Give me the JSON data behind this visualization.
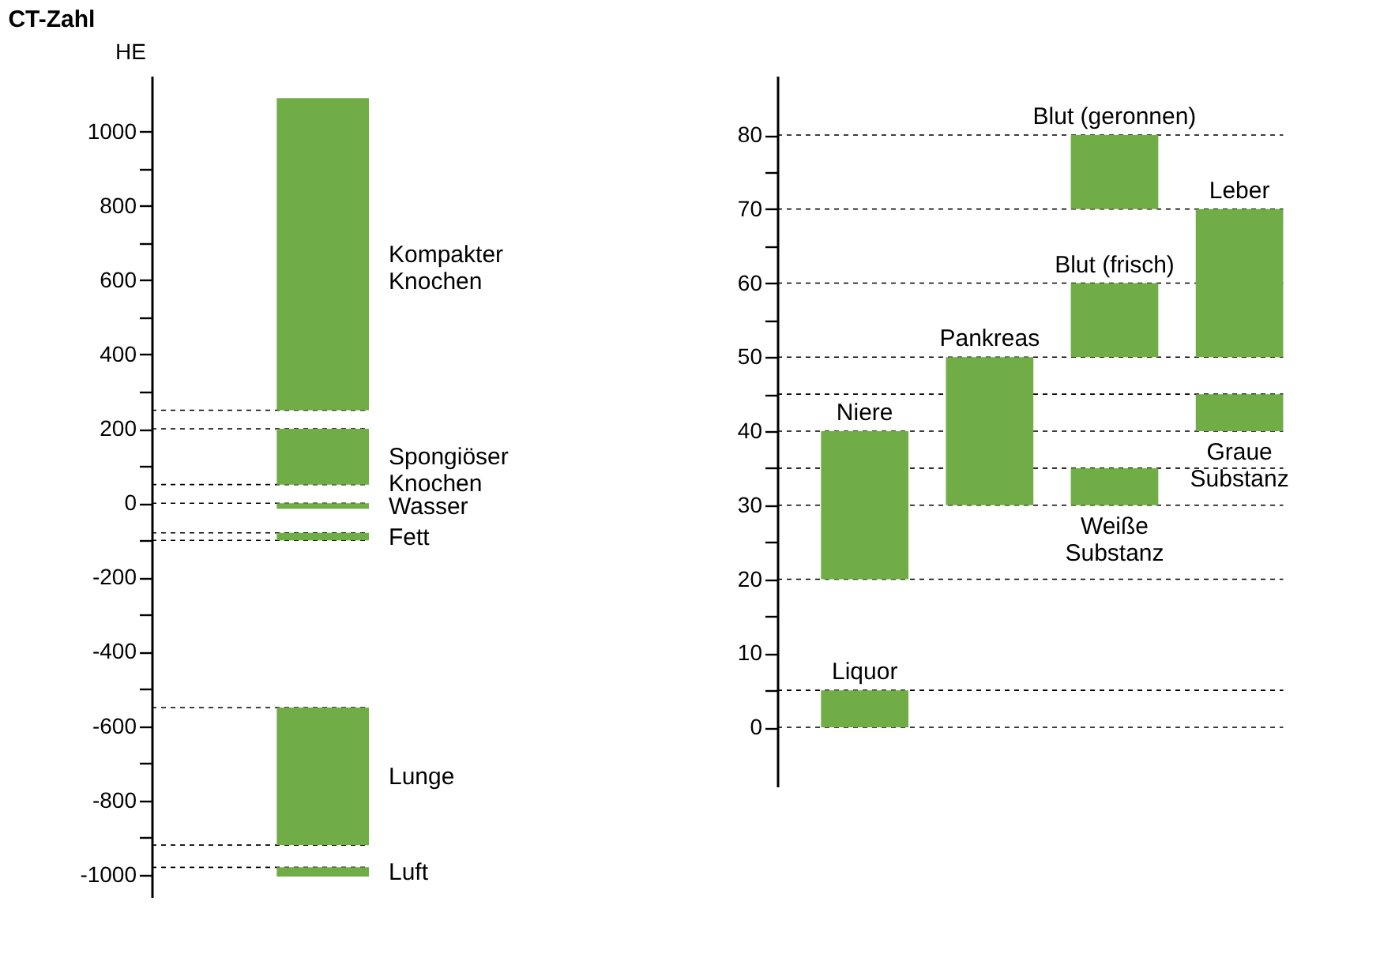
{
  "chart_data": [
    {
      "type": "bar",
      "title": "CT-Zahl",
      "ylabel": "HE",
      "categories": [
        null
      ],
      "ylim": [
        -1060,
        1150
      ],
      "yticks": [
        -1000,
        {
          "value": -900,
          "label": null
        },
        -800,
        {
          "value": -700,
          "label": null
        },
        -600,
        {
          "value": -500,
          "label": null
        },
        -400,
        {
          "value": -300,
          "label": null
        },
        -200,
        {
          "value": -100,
          "label": null
        },
        0,
        {
          "value": 100,
          "label": null
        },
        200,
        {
          "value": 300,
          "label": null
        },
        400,
        {
          "value": 500,
          "label": null
        },
        600,
        {
          "value": 700,
          "label": null
        },
        800,
        {
          "value": 900,
          "label": null
        },
        1000
      ],
      "series": [
        {
          "name": "Kompakter\nKnochen",
          "color": "#70ad47",
          "values": [
            840
          ],
          "base": [
            250
          ]
        },
        {
          "name": "Spongiöser\nKnochen",
          "color": "#70ad47",
          "values": [
            150
          ],
          "base": [
            50
          ]
        },
        {
          "name": "Wasser",
          "color": "#70ad47",
          "values": [
            15
          ],
          "base": [
            -15
          ]
        },
        {
          "name": "Fett",
          "color": "#70ad47",
          "values": [
            20
          ],
          "base": [
            -100
          ]
        },
        {
          "name": "Lunge",
          "color": "#70ad47",
          "values": [
            370
          ],
          "base": [
            -920
          ]
        },
        {
          "name": "Luft",
          "color": "#70ad47",
          "values": [
            25
          ],
          "base": [
            -1005
          ]
        }
      ],
      "ref_lines": [
        {
          "axis": "y",
          "value": 250,
          "line_style": "dashed",
          "color": "#000000"
        },
        {
          "axis": "y",
          "value": 200,
          "line_style": "dashed",
          "color": "#000000"
        },
        {
          "axis": "y",
          "value": 50,
          "line_style": "dashed",
          "color": "#000000"
        },
        {
          "axis": "y",
          "value": 0,
          "line_style": "dashed",
          "color": "#000000"
        },
        {
          "axis": "y",
          "value": -80,
          "line_style": "dashed",
          "color": "#000000"
        },
        {
          "axis": "y",
          "value": -100,
          "line_style": "dashed",
          "color": "#000000"
        },
        {
          "axis": "y",
          "value": -550,
          "line_style": "dashed",
          "color": "#000000"
        },
        {
          "axis": "y",
          "value": -920,
          "line_style": "dashed",
          "color": "#000000"
        },
        {
          "axis": "y",
          "value": -980,
          "line_style": "dashed",
          "color": "#000000"
        }
      ]
    },
    {
      "type": "bar",
      "categories": [
        null,
        null,
        null,
        null
      ],
      "ylim": [
        -8,
        88
      ],
      "yticks": [
        0,
        {
          "value": 5,
          "label": null
        },
        10,
        {
          "value": 15,
          "label": null
        },
        20,
        {
          "value": 25,
          "label": null
        },
        30,
        {
          "value": 35,
          "label": null
        },
        40,
        {
          "value": 45,
          "label": null
        },
        50,
        {
          "value": 55,
          "label": null
        },
        60,
        {
          "value": 65,
          "label": null
        },
        70,
        {
          "value": 75,
          "label": null
        },
        80
      ],
      "series": [
        {
          "name": "Liquor",
          "color": "#70ad47",
          "values": [
            5,
            null,
            null,
            null
          ],
          "base": [
            0,
            null,
            null,
            null
          ]
        },
        {
          "name": "Niere",
          "color": "#70ad47",
          "values": [
            20,
            null,
            null,
            null
          ],
          "base": [
            20,
            null,
            null,
            null
          ]
        },
        {
          "name": "Pankreas",
          "color": "#70ad47",
          "values": [
            null,
            20,
            null,
            null
          ],
          "base": [
            null,
            30,
            null,
            null
          ]
        },
        {
          "name": "Weiße\nSubstanz",
          "color": "#70ad47",
          "values": [
            null,
            null,
            5,
            null
          ],
          "base": [
            null,
            null,
            30,
            null
          ]
        },
        {
          "name": "Blut (frisch)",
          "color": "#70ad47",
          "values": [
            null,
            null,
            10,
            null
          ],
          "base": [
            null,
            null,
            50,
            null
          ]
        },
        {
          "name": "Blut (geronnen)",
          "color": "#70ad47",
          "values": [
            null,
            null,
            10,
            null
          ],
          "base": [
            null,
            null,
            70,
            null
          ]
        },
        {
          "name": "Graue\nSubstanz",
          "color": "#70ad47",
          "values": [
            null,
            null,
            null,
            5
          ],
          "base": [
            null,
            null,
            null,
            40
          ]
        },
        {
          "name": "Leber",
          "color": "#70ad47",
          "values": [
            null,
            null,
            null,
            20
          ],
          "base": [
            null,
            null,
            null,
            50
          ]
        }
      ],
      "ref_lines": [
        {
          "axis": "y",
          "value": 80,
          "line_style": "dashed",
          "color": "#000000"
        },
        {
          "axis": "y",
          "value": 70,
          "line_style": "dashed",
          "color": "#000000"
        },
        {
          "axis": "y",
          "value": 60,
          "line_style": "dashed",
          "color": "#000000"
        },
        {
          "axis": "y",
          "value": 50,
          "line_style": "dashed",
          "color": "#000000"
        },
        {
          "axis": "y",
          "value": 45,
          "line_style": "dashed",
          "color": "#000000"
        },
        {
          "axis": "y",
          "value": 40,
          "line_style": "dashed",
          "color": "#000000"
        },
        {
          "axis": "y",
          "value": 35,
          "line_style": "dashed",
          "color": "#000000"
        },
        {
          "axis": "y",
          "value": 30,
          "line_style": "dashed",
          "color": "#000000"
        },
        {
          "axis": "y",
          "value": 20,
          "line_style": "dashed",
          "color": "#000000"
        },
        {
          "axis": "y",
          "value": 5,
          "line_style": "dashed",
          "color": "#000000"
        },
        {
          "axis": "y",
          "value": 0,
          "line_style": "dashed",
          "color": "#000000"
        }
      ]
    }
  ]
}
